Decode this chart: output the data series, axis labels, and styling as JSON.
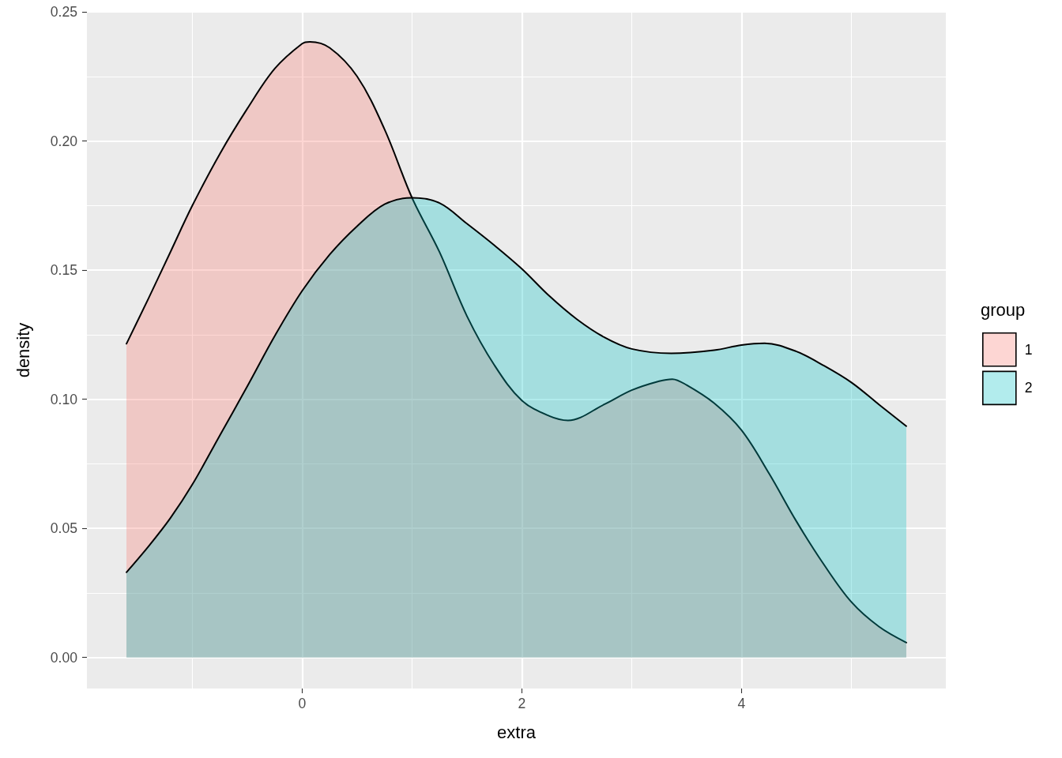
{
  "chart_data": {
    "type": "area",
    "xlabel": "extra",
    "ylabel": "density",
    "legend_title": "group",
    "legend": "right",
    "grid": true,
    "series": [
      {
        "name": "1",
        "color": "#f8766d",
        "x": [
          -1.6,
          -1.4,
          -1.2,
          -1.0,
          -0.75,
          -0.5,
          -0.25,
          0,
          0.07,
          0.25,
          0.5,
          0.75,
          1.0,
          1.25,
          1.5,
          1.75,
          2.0,
          2.25,
          2.42,
          2.75,
          3.0,
          3.25,
          3.37,
          3.5,
          3.75,
          4.0,
          4.25,
          4.5,
          4.75,
          5.0,
          5.25,
          5.5
        ],
        "values": [
          0.1215,
          0.139,
          0.157,
          0.175,
          0.195,
          0.2125,
          0.228,
          0.2377,
          0.2384,
          0.2361,
          0.225,
          0.2045,
          0.178,
          0.157,
          0.1322,
          0.1132,
          0.0995,
          0.0935,
          0.0918,
          0.098,
          0.1035,
          0.107,
          0.1078,
          0.1055,
          0.0985,
          0.088,
          0.0713,
          0.0527,
          0.036,
          0.0215,
          0.012,
          0.0058
        ]
      },
      {
        "name": "2",
        "color": "#00bfc4",
        "x": [
          -1.6,
          -1.4,
          -1.2,
          -1.0,
          -0.75,
          -0.5,
          -0.25,
          0,
          0.25,
          0.5,
          0.75,
          1.0,
          1.25,
          1.5,
          1.75,
          2.0,
          2.25,
          2.5,
          2.75,
          3.0,
          3.36,
          3.75,
          4.0,
          4.21,
          4.5,
          4.75,
          5.0,
          5.25,
          5.5
        ],
        "values": [
          0.033,
          0.043,
          0.054,
          0.067,
          0.086,
          0.105,
          0.1245,
          0.142,
          0.156,
          0.167,
          0.1755,
          0.178,
          0.176,
          0.168,
          0.1596,
          0.1505,
          0.14,
          0.131,
          0.124,
          0.1195,
          0.1178,
          0.119,
          0.121,
          0.1217,
          0.1185,
          0.113,
          0.1065,
          0.098,
          0.0896
        ]
      }
    ],
    "xlim": [
      -1.96,
      5.86
    ],
    "xticks": [
      0,
      2,
      4
    ],
    "ylim": [
      -0.012,
      0.25
    ],
    "yticks": [
      {
        "value": 0,
        "label": "0.00"
      },
      {
        "value": 0.05,
        "label": "0.05"
      },
      {
        "value": 0.1,
        "label": "0.10"
      },
      {
        "value": 0.15,
        "label": "0.15"
      },
      {
        "value": 0.2,
        "label": "0.20"
      },
      {
        "value": 0.25,
        "label": "0.25"
      }
    ]
  }
}
